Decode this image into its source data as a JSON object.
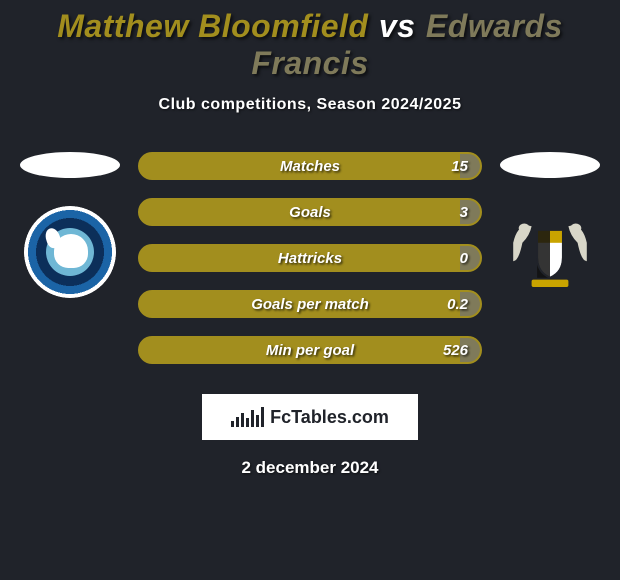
{
  "colors": {
    "page_bg": "#20232a",
    "player1": "#a28e1e",
    "player2": "#7f7a5a",
    "bar_border": "#a28e1e",
    "bar_fill_left": "#a28e1e",
    "bar_fill_right": "#7f7a5a",
    "title_vs": "#ffffff"
  },
  "header": {
    "player1": "Matthew Bloomfield",
    "vs": "vs",
    "player2": "Edwards Francis",
    "subtitle": "Club competitions, Season 2024/2025"
  },
  "stats": {
    "rows": [
      {
        "label": "Matches",
        "left": "",
        "right": "15",
        "right_fill_pct": 6
      },
      {
        "label": "Goals",
        "left": "",
        "right": "3",
        "right_fill_pct": 6
      },
      {
        "label": "Hattricks",
        "left": "",
        "right": "0",
        "right_fill_pct": 6
      },
      {
        "label": "Goals per match",
        "left": "",
        "right": "0.2",
        "right_fill_pct": 6
      },
      {
        "label": "Min per goal",
        "left": "",
        "right": "526",
        "right_fill_pct": 6
      }
    ]
  },
  "brand": {
    "name": "FcTables.com"
  },
  "date": "2 december 2024"
}
